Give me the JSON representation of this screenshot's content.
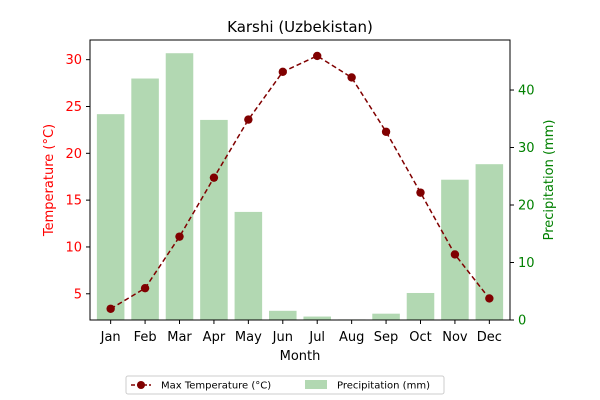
{
  "chart_data": {
    "type": "bar+line",
    "title": "Karshi (Uzbekistan)",
    "xlabel": "Month",
    "categories": [
      "Jan",
      "Feb",
      "Mar",
      "Apr",
      "May",
      "Jun",
      "Jul",
      "Aug",
      "Sep",
      "Oct",
      "Nov",
      "Dec"
    ],
    "series": [
      {
        "name": "Max Temperature (°C)",
        "type": "line",
        "axis": "left",
        "color": "#800000",
        "values": [
          3.4,
          5.6,
          11.1,
          17.4,
          23.6,
          28.7,
          30.4,
          28.1,
          22.3,
          15.8,
          9.2,
          4.5
        ]
      },
      {
        "name": "Precipitation (mm)",
        "type": "bar",
        "axis": "right",
        "color": "#b2d8b2",
        "values": [
          35.8,
          42.0,
          46.4,
          34.8,
          18.8,
          1.6,
          0.6,
          0.1,
          1.1,
          4.7,
          24.4,
          27.1
        ]
      }
    ],
    "y_left": {
      "label": "Temperature (°C)",
      "color": "#ff0000",
      "range": [
        2.2,
        32.1
      ],
      "ticks": [
        5,
        10,
        15,
        20,
        25,
        30
      ]
    },
    "y_right": {
      "label": "Precipitation (mm)",
      "color": "#008000",
      "range": [
        0,
        48.7
      ],
      "ticks": [
        0,
        10,
        20,
        30,
        40
      ]
    },
    "legend_position": "bottom-center",
    "grid": false
  }
}
